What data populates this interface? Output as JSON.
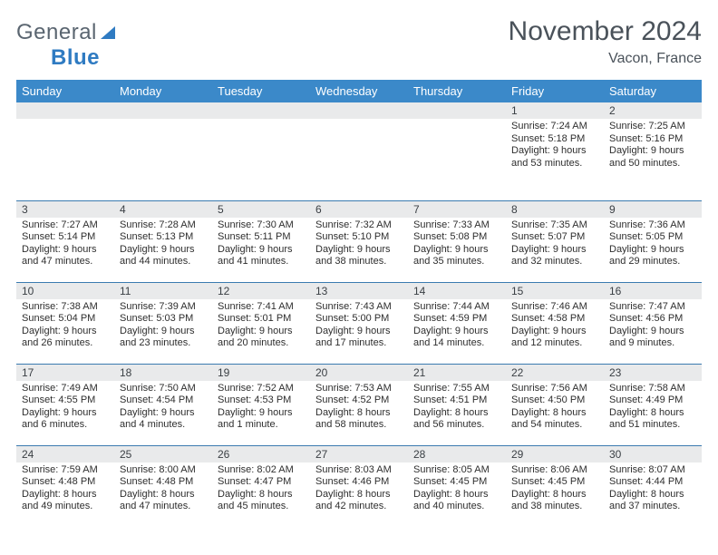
{
  "logo": {
    "general": "General",
    "blue": "Blue"
  },
  "title": "November 2024",
  "location": "Vacon, France",
  "colors": {
    "header_bg": "#3b89c9",
    "header_text": "#ffffff",
    "daynum_bg": "#e9eaeb",
    "border": "#3b7bb0",
    "logo_gray": "#5a6570",
    "logo_blue": "#2f7bc2",
    "title_color": "#4a525a"
  },
  "day_headers": [
    "Sunday",
    "Monday",
    "Tuesday",
    "Wednesday",
    "Thursday",
    "Friday",
    "Saturday"
  ],
  "weeks": [
    [
      null,
      null,
      null,
      null,
      null,
      {
        "n": "1",
        "sr": "7:24 AM",
        "ss": "5:18 PM",
        "dl": "9 hours and 53 minutes."
      },
      {
        "n": "2",
        "sr": "7:25 AM",
        "ss": "5:16 PM",
        "dl": "9 hours and 50 minutes."
      }
    ],
    [
      {
        "n": "3",
        "sr": "7:27 AM",
        "ss": "5:14 PM",
        "dl": "9 hours and 47 minutes."
      },
      {
        "n": "4",
        "sr": "7:28 AM",
        "ss": "5:13 PM",
        "dl": "9 hours and 44 minutes."
      },
      {
        "n": "5",
        "sr": "7:30 AM",
        "ss": "5:11 PM",
        "dl": "9 hours and 41 minutes."
      },
      {
        "n": "6",
        "sr": "7:32 AM",
        "ss": "5:10 PM",
        "dl": "9 hours and 38 minutes."
      },
      {
        "n": "7",
        "sr": "7:33 AM",
        "ss": "5:08 PM",
        "dl": "9 hours and 35 minutes."
      },
      {
        "n": "8",
        "sr": "7:35 AM",
        "ss": "5:07 PM",
        "dl": "9 hours and 32 minutes."
      },
      {
        "n": "9",
        "sr": "7:36 AM",
        "ss": "5:05 PM",
        "dl": "9 hours and 29 minutes."
      }
    ],
    [
      {
        "n": "10",
        "sr": "7:38 AM",
        "ss": "5:04 PM",
        "dl": "9 hours and 26 minutes."
      },
      {
        "n": "11",
        "sr": "7:39 AM",
        "ss": "5:03 PM",
        "dl": "9 hours and 23 minutes."
      },
      {
        "n": "12",
        "sr": "7:41 AM",
        "ss": "5:01 PM",
        "dl": "9 hours and 20 minutes."
      },
      {
        "n": "13",
        "sr": "7:43 AM",
        "ss": "5:00 PM",
        "dl": "9 hours and 17 minutes."
      },
      {
        "n": "14",
        "sr": "7:44 AM",
        "ss": "4:59 PM",
        "dl": "9 hours and 14 minutes."
      },
      {
        "n": "15",
        "sr": "7:46 AM",
        "ss": "4:58 PM",
        "dl": "9 hours and 12 minutes."
      },
      {
        "n": "16",
        "sr": "7:47 AM",
        "ss": "4:56 PM",
        "dl": "9 hours and 9 minutes."
      }
    ],
    [
      {
        "n": "17",
        "sr": "7:49 AM",
        "ss": "4:55 PM",
        "dl": "9 hours and 6 minutes."
      },
      {
        "n": "18",
        "sr": "7:50 AM",
        "ss": "4:54 PM",
        "dl": "9 hours and 4 minutes."
      },
      {
        "n": "19",
        "sr": "7:52 AM",
        "ss": "4:53 PM",
        "dl": "9 hours and 1 minute."
      },
      {
        "n": "20",
        "sr": "7:53 AM",
        "ss": "4:52 PM",
        "dl": "8 hours and 58 minutes."
      },
      {
        "n": "21",
        "sr": "7:55 AM",
        "ss": "4:51 PM",
        "dl": "8 hours and 56 minutes."
      },
      {
        "n": "22",
        "sr": "7:56 AM",
        "ss": "4:50 PM",
        "dl": "8 hours and 54 minutes."
      },
      {
        "n": "23",
        "sr": "7:58 AM",
        "ss": "4:49 PM",
        "dl": "8 hours and 51 minutes."
      }
    ],
    [
      {
        "n": "24",
        "sr": "7:59 AM",
        "ss": "4:48 PM",
        "dl": "8 hours and 49 minutes."
      },
      {
        "n": "25",
        "sr": "8:00 AM",
        "ss": "4:48 PM",
        "dl": "8 hours and 47 minutes."
      },
      {
        "n": "26",
        "sr": "8:02 AM",
        "ss": "4:47 PM",
        "dl": "8 hours and 45 minutes."
      },
      {
        "n": "27",
        "sr": "8:03 AM",
        "ss": "4:46 PM",
        "dl": "8 hours and 42 minutes."
      },
      {
        "n": "28",
        "sr": "8:05 AM",
        "ss": "4:45 PM",
        "dl": "8 hours and 40 minutes."
      },
      {
        "n": "29",
        "sr": "8:06 AM",
        "ss": "4:45 PM",
        "dl": "8 hours and 38 minutes."
      },
      {
        "n": "30",
        "sr": "8:07 AM",
        "ss": "4:44 PM",
        "dl": "8 hours and 37 minutes."
      }
    ]
  ],
  "labels": {
    "sunrise": "Sunrise:",
    "sunset": "Sunset:",
    "daylight": "Daylight:"
  }
}
